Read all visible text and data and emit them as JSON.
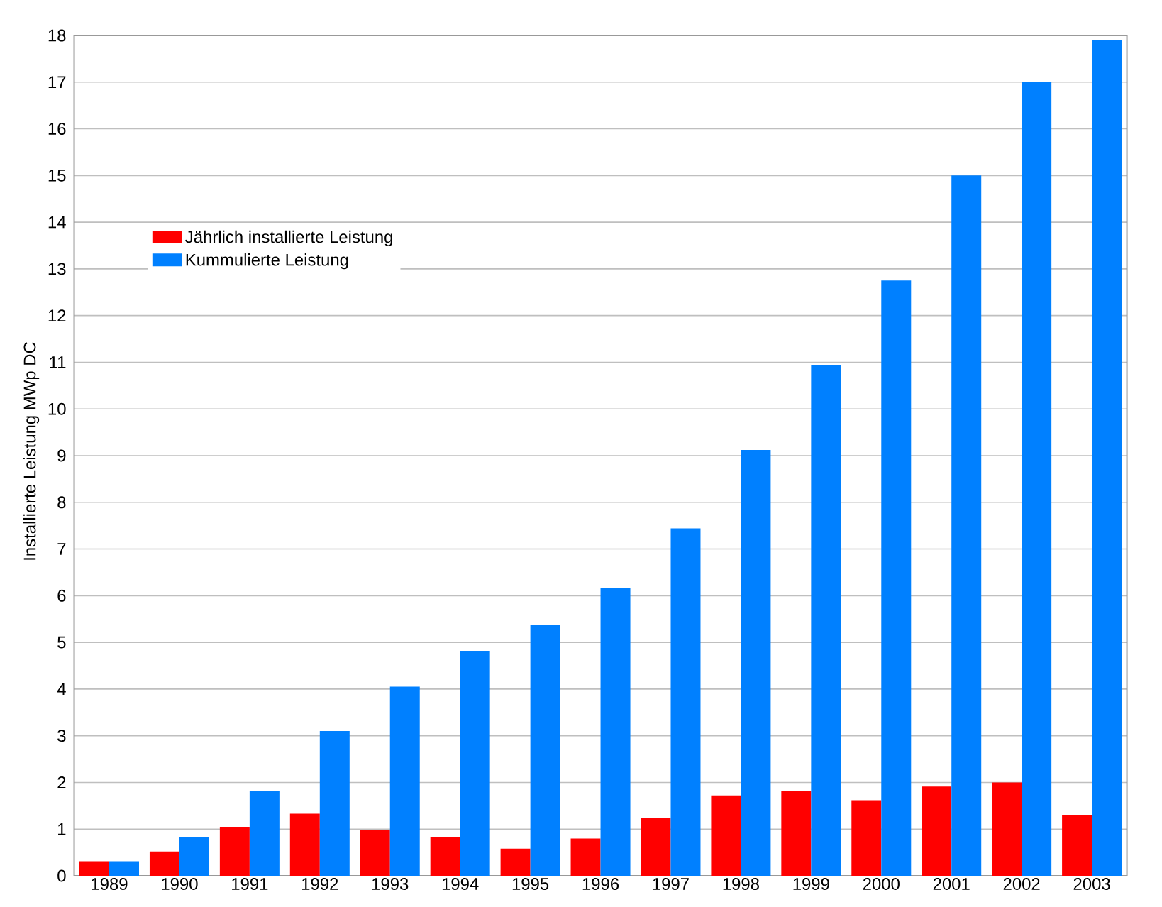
{
  "chart_data": {
    "type": "bar",
    "ylabel": "Installierte Leistung MWp DC",
    "categories": [
      "1989",
      "1990",
      "1991",
      "1992",
      "1993",
      "1994",
      "1995",
      "1996",
      "1997",
      "1998",
      "1999",
      "2000",
      "2001",
      "2002",
      "2003"
    ],
    "series": [
      {
        "name": "Jährlich installierte Leistung",
        "color": "#ff0000",
        "values": [
          0.31,
          0.52,
          1.05,
          1.33,
          0.98,
          0.82,
          0.58,
          0.8,
          1.24,
          1.72,
          1.82,
          1.62,
          1.91,
          2.0,
          1.3
        ]
      },
      {
        "name": "Kummulierte Leistung",
        "color": "#0080ff",
        "values": [
          0.31,
          0.82,
          1.82,
          3.1,
          4.05,
          4.82,
          5.38,
          6.17,
          7.44,
          9.12,
          10.94,
          12.75,
          15.0,
          17.0,
          17.9
        ]
      }
    ],
    "ylim": [
      0,
      18
    ],
    "yticks": [
      0,
      1,
      2,
      3,
      4,
      5,
      6,
      7,
      8,
      9,
      10,
      11,
      12,
      13,
      14,
      15,
      16,
      17,
      18
    ],
    "grid": "y",
    "legend": "top left"
  }
}
